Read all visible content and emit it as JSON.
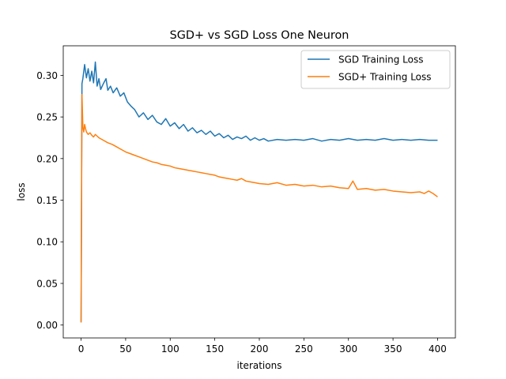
{
  "chart_data": {
    "type": "line",
    "title": "SGD+ vs SGD Loss One Neuron",
    "xlabel": "iterations",
    "ylabel": "loss",
    "xlim": [
      -20,
      420
    ],
    "ylim": [
      -0.0155,
      0.3355
    ],
    "xticks": [
      0,
      50,
      100,
      150,
      200,
      250,
      300,
      350,
      400
    ],
    "yticks": [
      0.0,
      0.05,
      0.1,
      0.15,
      0.2,
      0.25,
      0.3
    ],
    "ytick_labels": [
      "0.00",
      "0.05",
      "0.10",
      "0.15",
      "0.20",
      "0.25",
      "0.30"
    ],
    "grid": false,
    "legend_position": "upper-right",
    "series": [
      {
        "name": "SGD Training Loss",
        "color": "#1f77b4",
        "x": [
          0,
          1,
          2,
          4,
          6,
          8,
          10,
          12,
          14,
          16,
          18,
          20,
          22,
          25,
          28,
          30,
          33,
          36,
          40,
          44,
          48,
          52,
          56,
          60,
          65,
          70,
          75,
          80,
          85,
          90,
          95,
          100,
          105,
          110,
          115,
          120,
          125,
          130,
          135,
          140,
          145,
          150,
          155,
          160,
          165,
          170,
          175,
          180,
          185,
          190,
          195,
          200,
          205,
          210,
          220,
          230,
          240,
          250,
          260,
          270,
          280,
          290,
          300,
          310,
          320,
          330,
          340,
          350,
          360,
          370,
          380,
          390,
          400
        ],
        "y": [
          0.004,
          0.29,
          0.296,
          0.313,
          0.297,
          0.308,
          0.293,
          0.305,
          0.291,
          0.316,
          0.287,
          0.296,
          0.283,
          0.29,
          0.296,
          0.282,
          0.287,
          0.279,
          0.285,
          0.275,
          0.279,
          0.268,
          0.263,
          0.259,
          0.25,
          0.255,
          0.247,
          0.252,
          0.244,
          0.241,
          0.248,
          0.239,
          0.243,
          0.236,
          0.241,
          0.233,
          0.237,
          0.231,
          0.234,
          0.229,
          0.233,
          0.227,
          0.23,
          0.225,
          0.228,
          0.223,
          0.226,
          0.224,
          0.227,
          0.222,
          0.225,
          0.222,
          0.224,
          0.221,
          0.223,
          0.222,
          0.223,
          0.222,
          0.224,
          0.221,
          0.223,
          0.222,
          0.224,
          0.222,
          0.223,
          0.222,
          0.224,
          0.222,
          0.223,
          0.222,
          0.223,
          0.222,
          0.222
        ]
      },
      {
        "name": "SGD+ Training Loss",
        "color": "#ff7f0e",
        "x": [
          0,
          1,
          2,
          3,
          4,
          5,
          6,
          8,
          10,
          12,
          14,
          16,
          18,
          20,
          25,
          30,
          35,
          40,
          45,
          50,
          55,
          60,
          65,
          70,
          75,
          80,
          85,
          90,
          95,
          100,
          105,
          110,
          115,
          120,
          125,
          130,
          135,
          140,
          145,
          150,
          155,
          160,
          165,
          170,
          175,
          180,
          185,
          190,
          195,
          200,
          210,
          220,
          230,
          240,
          250,
          260,
          270,
          280,
          290,
          300,
          305,
          310,
          320,
          330,
          340,
          350,
          360,
          370,
          380,
          385,
          390,
          395,
          400
        ],
        "y": [
          0.003,
          0.277,
          0.238,
          0.232,
          0.241,
          0.236,
          0.232,
          0.229,
          0.231,
          0.228,
          0.226,
          0.229,
          0.227,
          0.225,
          0.222,
          0.219,
          0.217,
          0.214,
          0.211,
          0.208,
          0.206,
          0.204,
          0.202,
          0.2,
          0.198,
          0.196,
          0.195,
          0.193,
          0.192,
          0.191,
          0.189,
          0.188,
          0.187,
          0.186,
          0.185,
          0.184,
          0.183,
          0.182,
          0.181,
          0.18,
          0.178,
          0.177,
          0.176,
          0.175,
          0.174,
          0.176,
          0.173,
          0.172,
          0.171,
          0.17,
          0.169,
          0.171,
          0.168,
          0.169,
          0.167,
          0.168,
          0.166,
          0.167,
          0.165,
          0.164,
          0.173,
          0.163,
          0.164,
          0.162,
          0.163,
          0.161,
          0.16,
          0.159,
          0.16,
          0.158,
          0.161,
          0.158,
          0.154
        ]
      }
    ]
  }
}
